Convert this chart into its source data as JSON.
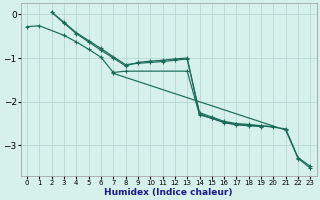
{
  "xlabel": "Humidex (Indice chaleur)",
  "bg_color": "#d6f0eb",
  "grid_color": "#b8d8d2",
  "line_color": "#1a6b5a",
  "xlim": [
    -0.5,
    23.5
  ],
  "ylim": [
    -3.7,
    0.25
  ],
  "yticks": [
    0,
    -1,
    -2,
    -3
  ],
  "xticks": [
    0,
    1,
    2,
    3,
    4,
    5,
    6,
    7,
    8,
    9,
    10,
    11,
    12,
    13,
    14,
    15,
    16,
    17,
    18,
    19,
    20,
    21,
    22,
    23
  ],
  "series": [
    {
      "x": [
        2,
        3,
        4,
        5,
        6,
        7,
        8,
        9,
        10,
        11,
        12,
        13,
        14,
        15,
        16,
        17,
        18,
        19,
        21,
        22,
        23
      ],
      "y": [
        0.05,
        -0.18,
        -0.42,
        -0.6,
        -0.78,
        -0.97,
        -1.15,
        -1.12,
        -1.1,
        -1.08,
        -1.05,
        -1.02,
        -2.25,
        -2.35,
        -2.45,
        -2.5,
        -2.52,
        -2.55,
        -2.62,
        -3.28,
        -3.48
      ]
    },
    {
      "x": [
        2,
        3,
        4,
        5,
        6,
        7,
        8,
        9,
        10,
        11,
        12,
        13,
        14,
        15,
        16,
        17,
        18,
        19
      ],
      "y": [
        0.05,
        -0.2,
        -0.44,
        -0.63,
        -0.82,
        -1.0,
        -1.18,
        -1.1,
        -1.07,
        -1.05,
        -1.02,
        -1.0,
        -2.28,
        -2.38,
        -2.48,
        -2.53,
        -2.55,
        -2.57
      ]
    },
    {
      "x": [
        0,
        1,
        3,
        4,
        5,
        6,
        7,
        8,
        13,
        14,
        15,
        16,
        17,
        18,
        19,
        20
      ],
      "y": [
        -0.28,
        -0.26,
        -0.48,
        -0.63,
        -0.8,
        -0.98,
        -1.33,
        -1.3,
        -1.3,
        -2.3,
        -2.38,
        -2.47,
        -2.52,
        -2.54,
        -2.55,
        -2.57
      ]
    },
    {
      "x": [
        7,
        21,
        22,
        23
      ],
      "y": [
        -1.35,
        -2.65,
        -3.3,
        -3.52
      ]
    }
  ]
}
